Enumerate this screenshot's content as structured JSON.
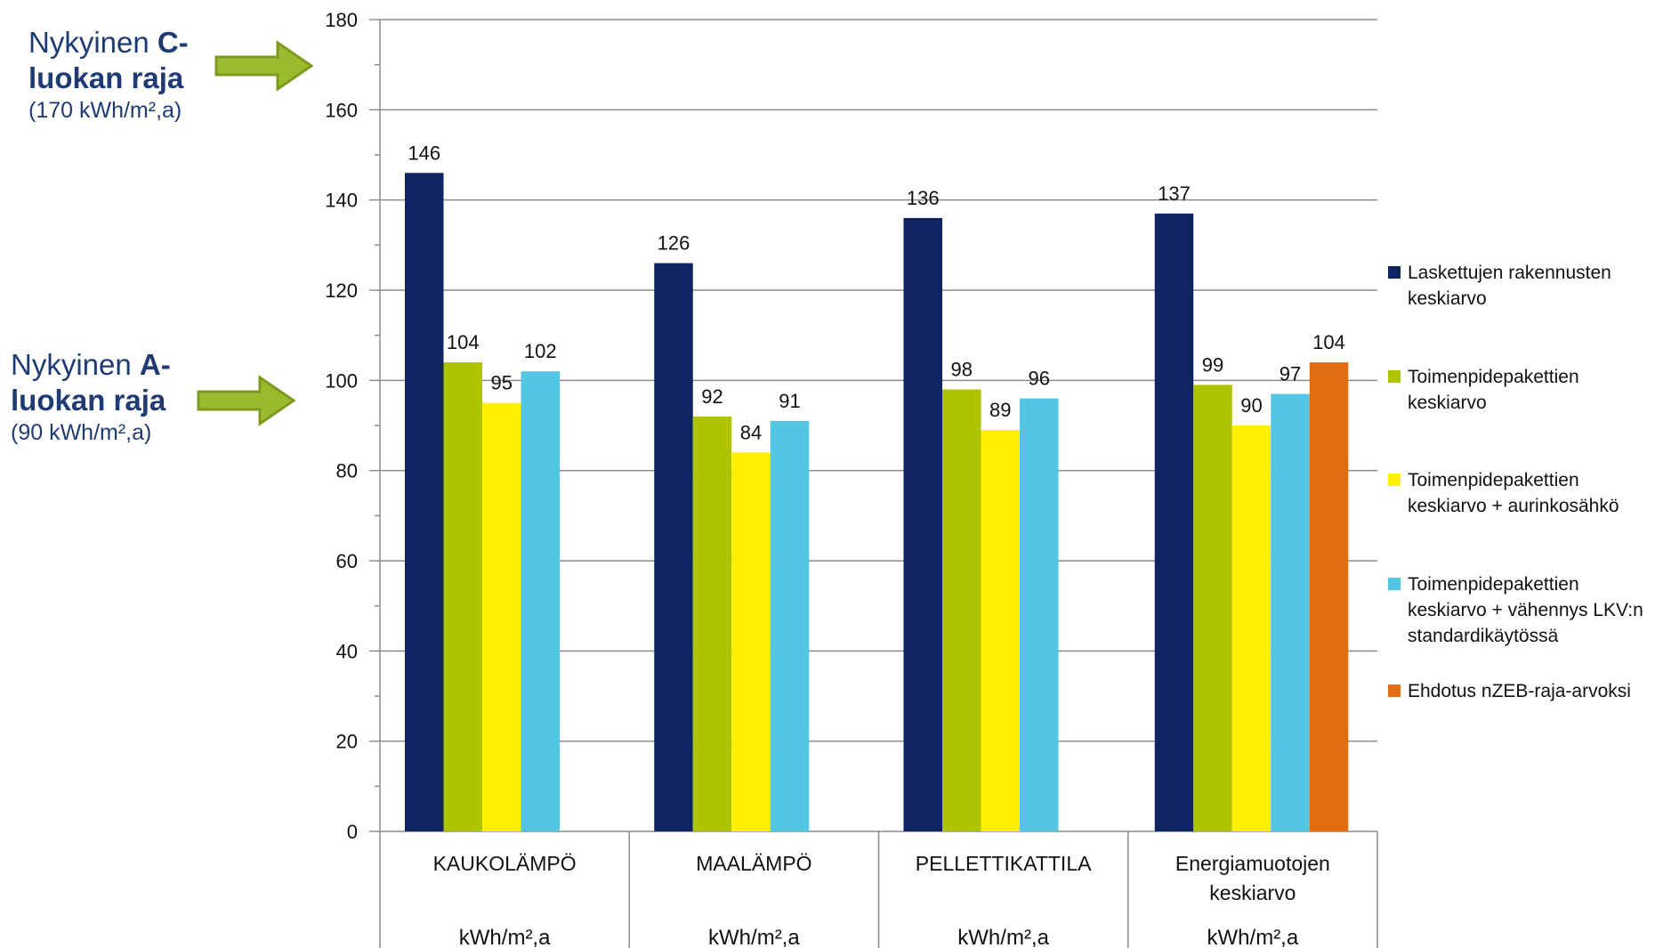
{
  "callouts": {
    "c_class": {
      "prefix": "Nykyinen ",
      "bold1": "C-",
      "bold2": "luokan raja",
      "sub": "(170 kWh/m²,a)"
    },
    "a_class": {
      "prefix": "Nykyinen ",
      "bold1": "A-",
      "bold2": "luokan raja",
      "sub": "(90 kWh/m²,a)"
    }
  },
  "colors": {
    "navy": "#0f2460",
    "green": "#aec400",
    "yellow": "#fff000",
    "cyan": "#52c6e2",
    "orange": "#e06d10",
    "arrow": "#9bbb2e",
    "callout_text": "#1f3b73"
  },
  "chart_data": {
    "type": "bar",
    "ylim": [
      0,
      180
    ],
    "yticks": [
      0,
      20,
      40,
      60,
      80,
      100,
      120,
      140,
      160,
      180
    ],
    "grid": true,
    "legend_position": "right",
    "categories": [
      "KAUKOLÄMPÖ",
      "MAALÄMPÖ",
      "PELLETTIKATTILA",
      "Energiamuotojen\nkeskiarvo"
    ],
    "unit_row": [
      "kWh/m²,a",
      "kWh/m²,a",
      "kWh/m²,a",
      "kWh/m²,a"
    ],
    "series": [
      {
        "name": "Laskettujen rakennusten\nkeskiarvo",
        "color": "#0f2460",
        "values": [
          146,
          126,
          136,
          137
        ]
      },
      {
        "name": "Toimenpidepakettien\nkeskiarvo",
        "color": "#aec400",
        "values": [
          104,
          92,
          98,
          99
        ]
      },
      {
        "name": "Toimenpidepakettien\nkeskiarvo + aurinkosähkö",
        "color": "#fff000",
        "values": [
          95,
          84,
          89,
          90
        ]
      },
      {
        "name": "Toimenpidepakettien\nkeskiarvo +  vähennys LKV:n\nstandardikäytössä",
        "color": "#52c6e2",
        "values": [
          102,
          91,
          96,
          97
        ]
      },
      {
        "name": "Ehdotus nZEB-raja-arvoksi",
        "color": "#e06d10",
        "values": [
          null,
          null,
          null,
          104
        ]
      }
    ]
  }
}
